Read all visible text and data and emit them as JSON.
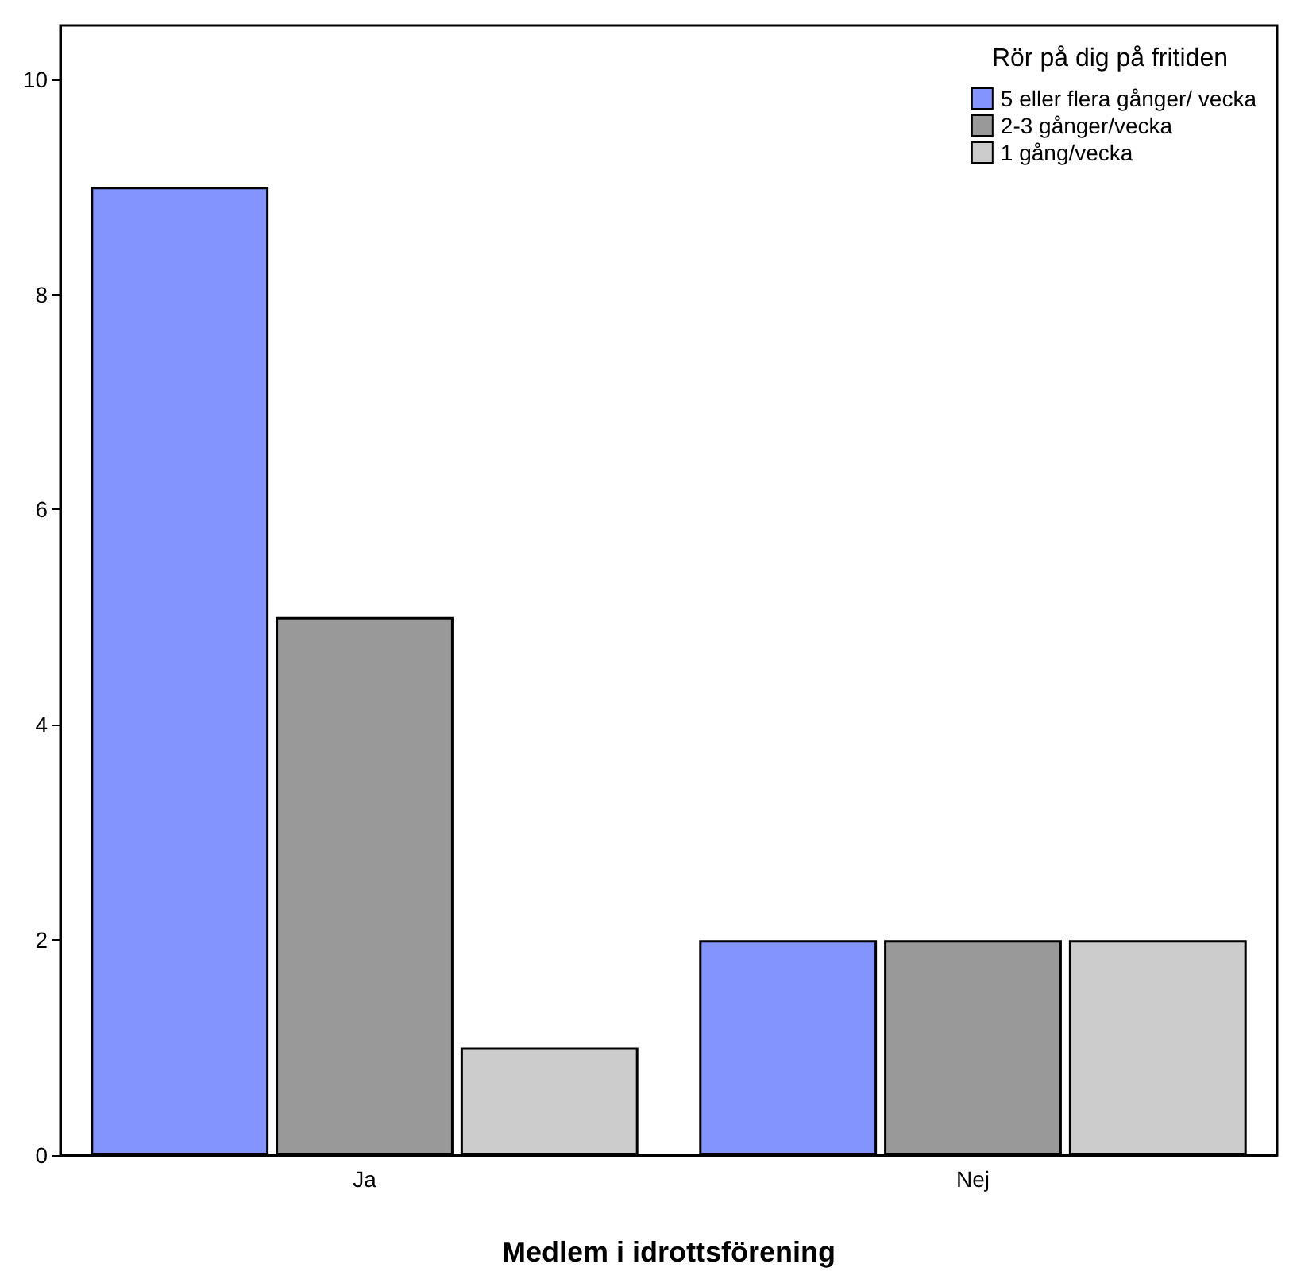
{
  "chart_data": {
    "type": "bar",
    "xlabel": "Medlem i idrottsförening",
    "legend_title": "Rör på dig på fritiden",
    "categories": [
      "Ja",
      "Nej"
    ],
    "series": [
      {
        "name": "5 eller flera gånger/ vecka",
        "color": "#8494ff",
        "values": [
          9,
          2
        ]
      },
      {
        "name": "2-3 gånger/vecka",
        "color": "#999999",
        "values": [
          5,
          2
        ]
      },
      {
        "name": "1 gång/vecka",
        "color": "#cccccc",
        "values": [
          1,
          2
        ]
      }
    ],
    "ylim": [
      0,
      10.5
    ],
    "yticks": [
      0,
      2,
      4,
      6,
      8,
      10
    ],
    "grid": false,
    "legend": "top right"
  }
}
